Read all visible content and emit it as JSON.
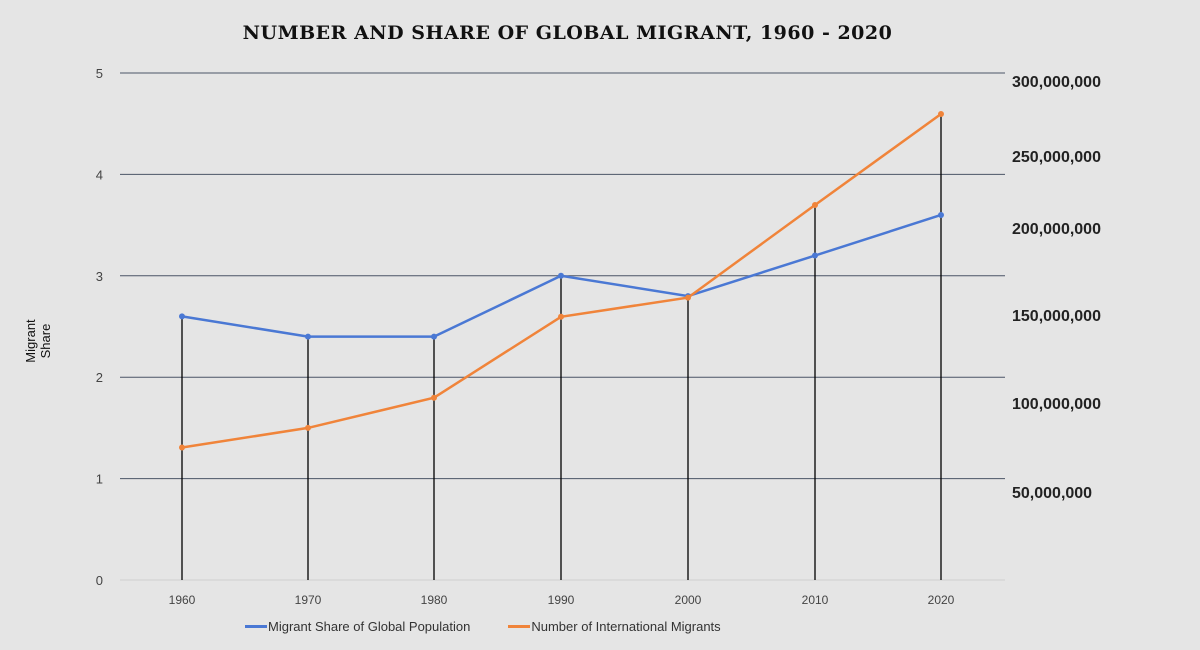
{
  "chart_data": {
    "type": "line",
    "title": "NUMBER AND SHARE OF GLOBAL MIGRANT, 1960 - 2020",
    "xlabel": "",
    "ylabel": "Migrant Share",
    "y2label": "",
    "categories": [
      "1960",
      "1970",
      "1980",
      "1990",
      "2000",
      "2010",
      "2020"
    ],
    "ylim": [
      0,
      5
    ],
    "yticks": [
      "0",
      "1",
      "2",
      "3",
      "4",
      "5"
    ],
    "y2ticks": [
      "300,000,000",
      "250,000,000",
      "200,000,000",
      "150,000,000",
      "100,000,000",
      "50,000,000"
    ],
    "grid": true,
    "legend": "bottom",
    "drop_lines": true,
    "series": [
      {
        "name": "Migrant Share of Global Population",
        "axis": "left",
        "color": "#4a78d4",
        "values": [
          2.6,
          2.4,
          2.4,
          3.0,
          2.8,
          3.2,
          3.6
        ]
      },
      {
        "name": "Number of International Migrants",
        "axis": "right",
        "color": "#f0843a",
        "values": [
          75000000,
          86000000,
          103000000,
          149000000,
          160000000,
          216000000,
          278000000
        ]
      }
    ]
  }
}
